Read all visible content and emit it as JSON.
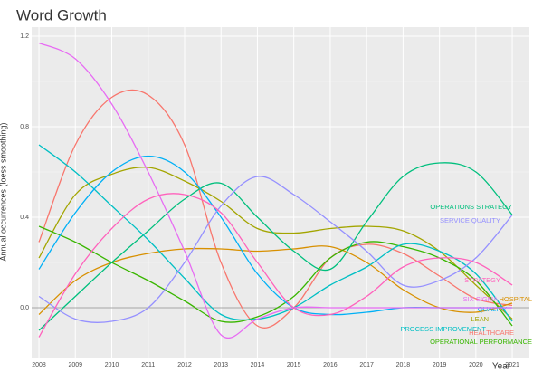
{
  "chart_data": {
    "type": "line",
    "title": "Word Growth",
    "x_label": "Year",
    "y_label": "Annual occurrences (loess smoothing)",
    "x": [
      2008,
      2009,
      2010,
      2011,
      2012,
      2013,
      2014,
      2015,
      2016,
      2017,
      2018,
      2019,
      2020,
      2021
    ],
    "xlim": [
      2007.8,
      2021.47
    ],
    "xticks": [
      2008,
      2009,
      2010,
      2011,
      2012,
      2013,
      2014,
      2015,
      2016,
      2017,
      2018,
      2019,
      2020,
      2021
    ],
    "ylim": [
      -0.22,
      1.24
    ],
    "yticks": [
      {
        "value": 0,
        "label": "0.0"
      },
      0.4,
      0.8,
      1.2
    ],
    "grid": true,
    "series": [
      {
        "name": "HEALTHCARE",
        "color": "#F8766D",
        "values": [
          0.29,
          0.72,
          0.93,
          0.94,
          0.72,
          0.2,
          -0.08,
          0.0,
          0.22,
          0.28,
          0.24,
          0.14,
          0.04,
          0.01
        ]
      },
      {
        "name": "HOSPITAL",
        "color": "#D89000",
        "values": [
          -0.03,
          0.12,
          0.2,
          0.24,
          0.26,
          0.26,
          0.25,
          0.26,
          0.27,
          0.2,
          0.08,
          0.0,
          -0.02,
          0.02
        ]
      },
      {
        "name": "LEAN",
        "color": "#A3A500",
        "values": [
          0.22,
          0.5,
          0.59,
          0.62,
          0.56,
          0.47,
          0.35,
          0.33,
          0.35,
          0.36,
          0.34,
          0.25,
          0.1,
          -0.05
        ]
      },
      {
        "name": "OPERATIONAL PERFORMANCE",
        "color": "#39B600",
        "values": [
          0.36,
          0.29,
          0.2,
          0.12,
          0.03,
          -0.06,
          -0.04,
          0.05,
          0.22,
          0.29,
          0.27,
          0.22,
          0.12,
          -0.08
        ]
      },
      {
        "name": "OPERATIONS STRATEGY",
        "color": "#00BF7D",
        "values": [
          -0.1,
          0.05,
          0.2,
          0.34,
          0.48,
          0.55,
          0.4,
          0.25,
          0.17,
          0.38,
          0.58,
          0.64,
          0.6,
          0.41
        ]
      },
      {
        "name": "PROCESS IMPROVEMENT",
        "color": "#00BFC4",
        "values": [
          0.72,
          0.6,
          0.45,
          0.3,
          0.13,
          -0.03,
          -0.05,
          0.0,
          0.1,
          0.18,
          0.28,
          0.25,
          0.15,
          -0.06
        ]
      },
      {
        "name": "QUALITY",
        "color": "#00B0F6",
        "values": [
          0.17,
          0.42,
          0.6,
          0.67,
          0.6,
          0.4,
          0.15,
          0.0,
          -0.03,
          -0.02,
          0.0,
          0.0,
          0.0,
          0.0
        ]
      },
      {
        "name": "SERVICE QUALITY",
        "color": "#9590FF",
        "values": [
          0.05,
          -0.05,
          -0.06,
          0.0,
          0.2,
          0.45,
          0.58,
          0.5,
          0.38,
          0.25,
          0.1,
          0.12,
          0.22,
          0.41
        ]
      },
      {
        "name": "SIX SIGMA",
        "color": "#E76BF3",
        "values": [
          1.17,
          1.1,
          0.9,
          0.6,
          0.25,
          -0.12,
          -0.05,
          0.0,
          0.0,
          0.0,
          0.0,
          0.0,
          0.0,
          0.0
        ]
      },
      {
        "name": "STRATEGY",
        "color": "#FF62BC",
        "values": [
          -0.13,
          0.15,
          0.35,
          0.48,
          0.5,
          0.42,
          0.2,
          0.0,
          -0.03,
          0.05,
          0.18,
          0.22,
          0.2,
          0.1
        ]
      }
    ]
  }
}
